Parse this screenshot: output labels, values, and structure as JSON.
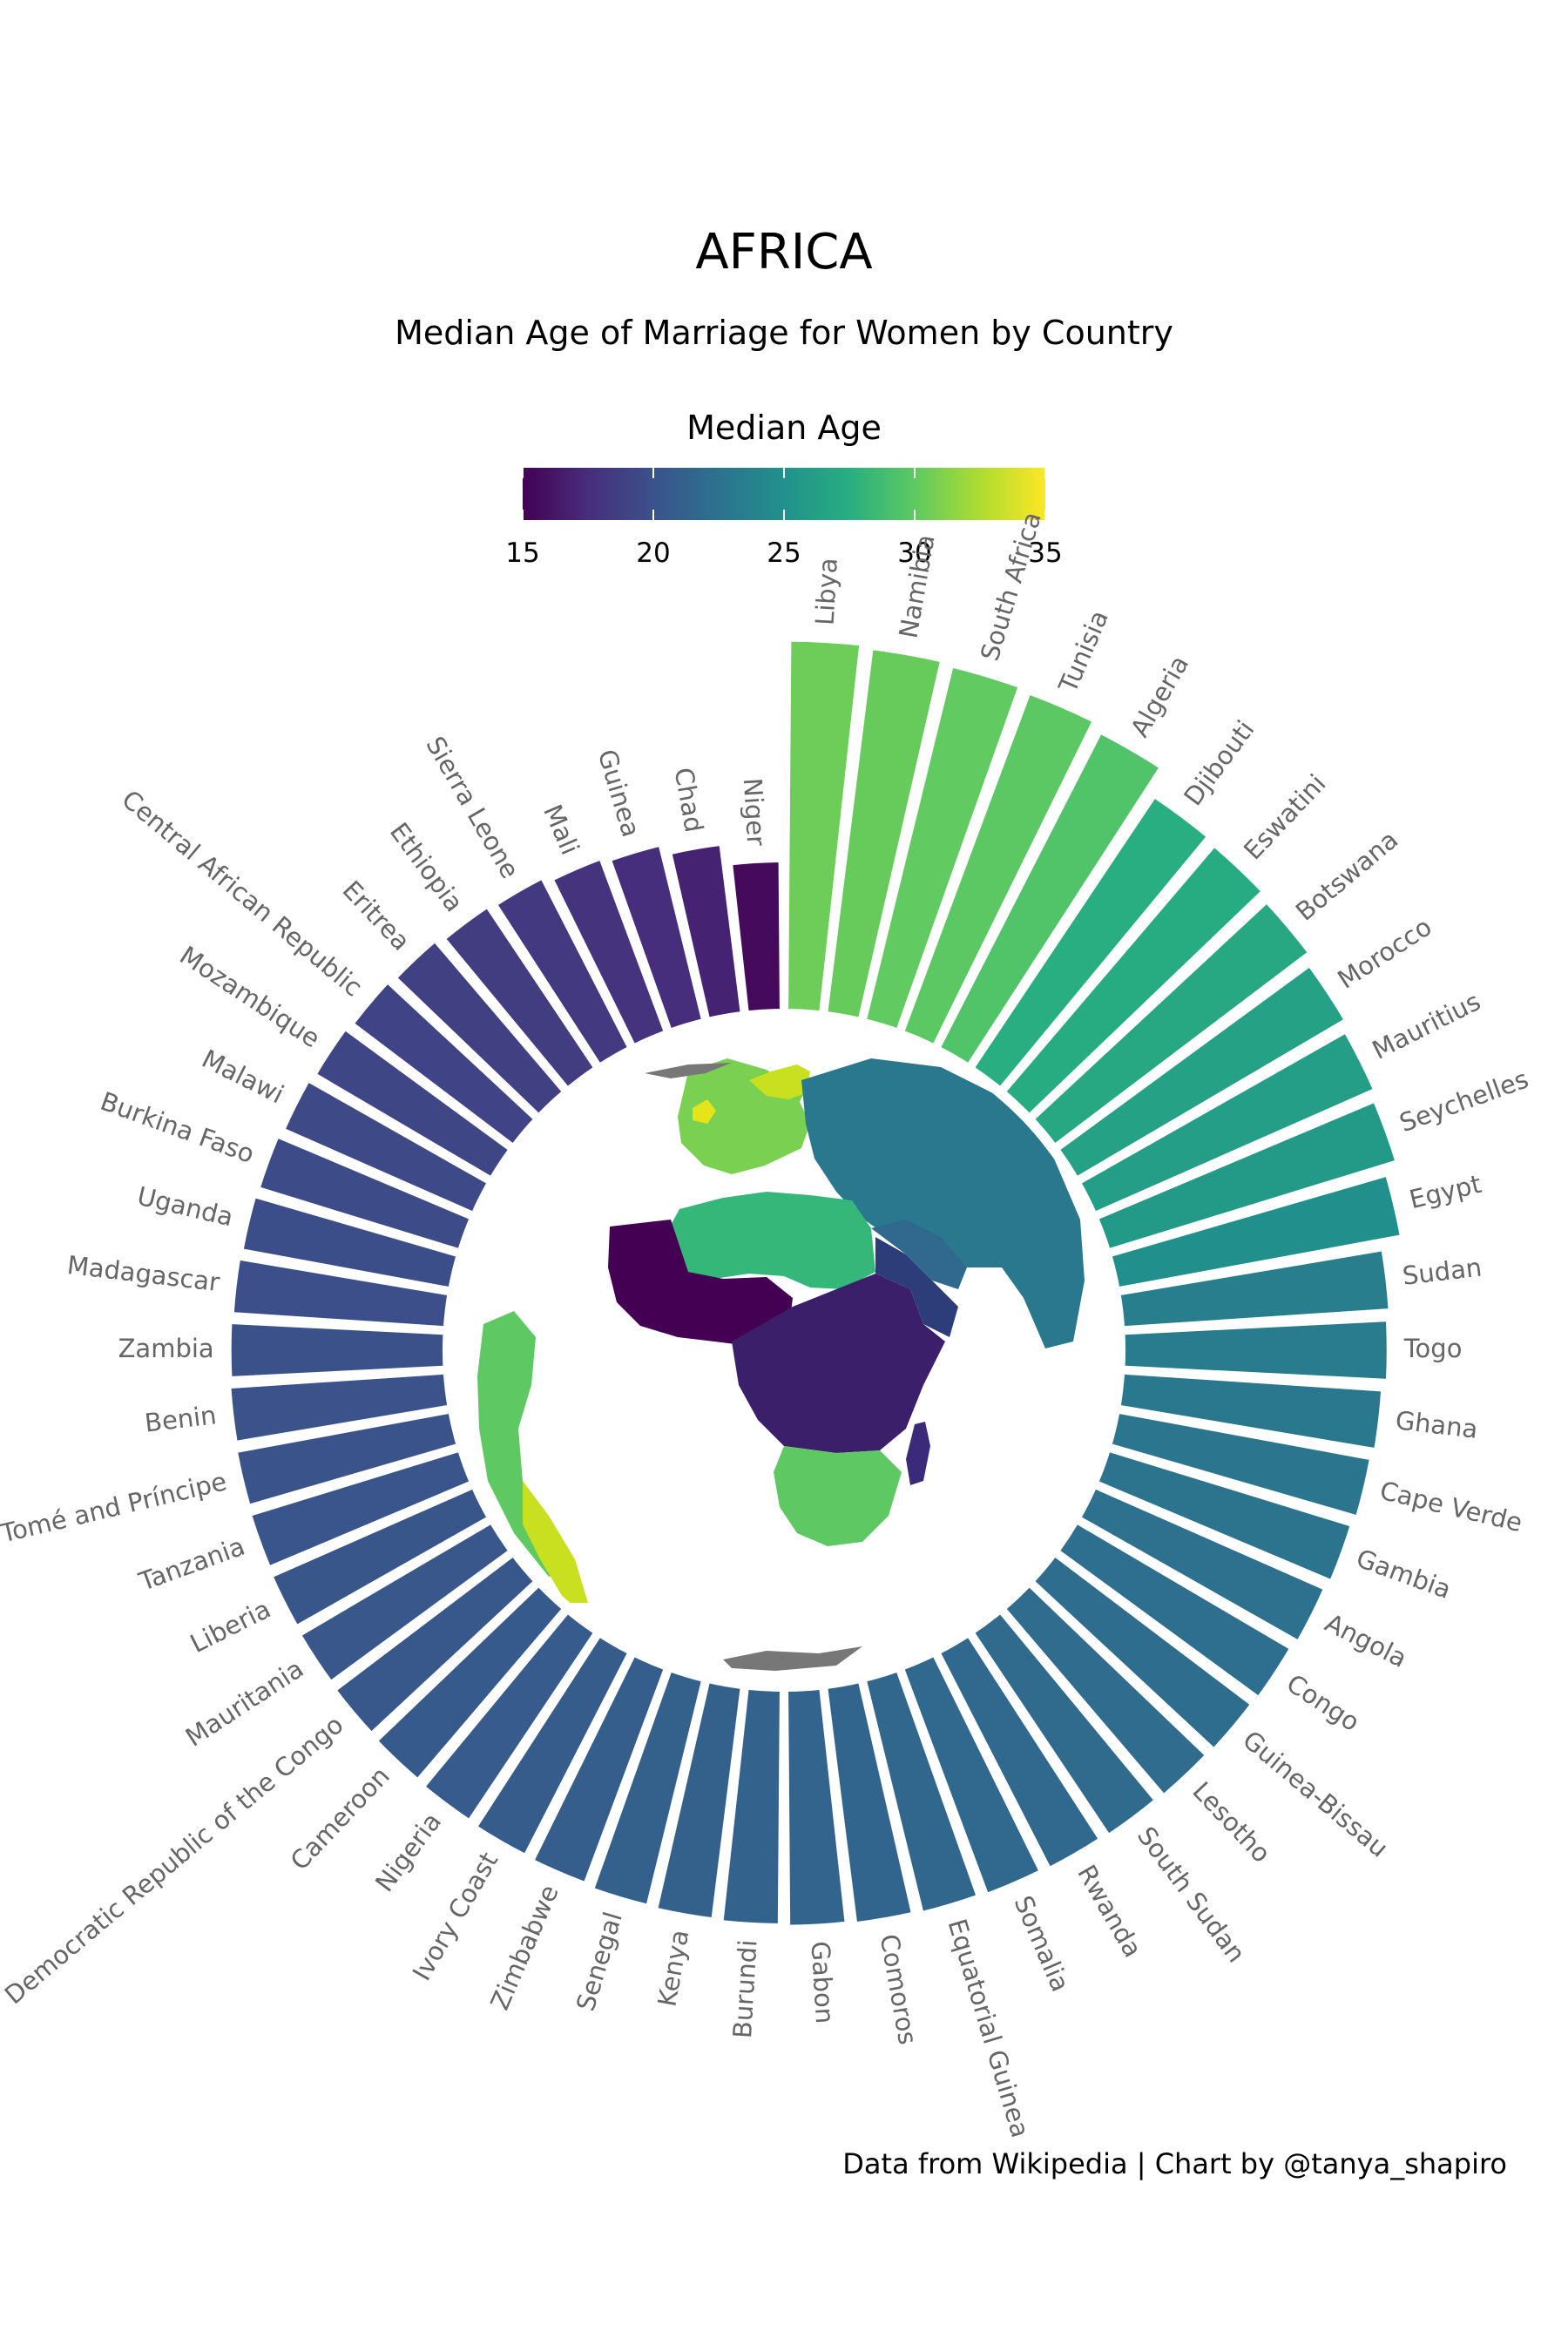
{
  "chart_data": {
    "type": "radial-bar",
    "title": "AFRICA",
    "subtitle": "Median Age of Marriage for Women by Country",
    "legend": {
      "title": "Median Age",
      "ticks": [
        "15",
        "20",
        "25",
        "30",
        "35"
      ],
      "range": [
        15,
        35
      ]
    },
    "caption": "Data from Wikipedia | Chart by @tanya_shapiro",
    "palette": "viridis",
    "countries": [
      {
        "name": "Libya",
        "value": 30.5
      },
      {
        "name": "Namibia",
        "value": 30.3
      },
      {
        "name": "South Africa",
        "value": 30.1
      },
      {
        "name": "Tunisia",
        "value": 29.9
      },
      {
        "name": "Algeria",
        "value": 29.4
      },
      {
        "name": "Djibouti",
        "value": 27.5
      },
      {
        "name": "Eswatini",
        "value": 27.3
      },
      {
        "name": "Botswana",
        "value": 27.0
      },
      {
        "name": "Morocco",
        "value": 26.5
      },
      {
        "name": "Mauritius",
        "value": 26.1
      },
      {
        "name": "Seychelles",
        "value": 25.8
      },
      {
        "name": "Egypt",
        "value": 24.9
      },
      {
        "name": "Sudan",
        "value": 23.5
      },
      {
        "name": "Togo",
        "value": 23.3
      },
      {
        "name": "Ghana",
        "value": 23.0
      },
      {
        "name": "Cape Verde",
        "value": 22.8
      },
      {
        "name": "Gambia",
        "value": 22.6
      },
      {
        "name": "Angola",
        "value": 22.4
      },
      {
        "name": "Congo",
        "value": 22.2
      },
      {
        "name": "Guinea-Bissau",
        "value": 22.1
      },
      {
        "name": "Lesotho",
        "value": 22.0
      },
      {
        "name": "South Sudan",
        "value": 21.9
      },
      {
        "name": "Rwanda",
        "value": 21.8
      },
      {
        "name": "Somalia",
        "value": 21.7
      },
      {
        "name": "Equatorial Guinea",
        "value": 21.6
      },
      {
        "name": "Comoros",
        "value": 21.5
      },
      {
        "name": "Gabon",
        "value": 21.4
      },
      {
        "name": "Burundi",
        "value": 21.3
      },
      {
        "name": "Kenya",
        "value": 21.2
      },
      {
        "name": "Senegal",
        "value": 21.1
      },
      {
        "name": "Zimbabwe",
        "value": 20.9
      },
      {
        "name": "Ivory Coast",
        "value": 20.8
      },
      {
        "name": "Nigeria",
        "value": 20.7
      },
      {
        "name": "Cameroon",
        "value": 20.6
      },
      {
        "name": "Democratic Republic of the Congo",
        "value": 20.5
      },
      {
        "name": "Mauritania",
        "value": 20.4
      },
      {
        "name": "Liberia",
        "value": 20.3
      },
      {
        "name": "Tanzania",
        "value": 20.2
      },
      {
        "name": "São Tomé and Príncipe",
        "value": 20.1
      },
      {
        "name": "Benin",
        "value": 20.0
      },
      {
        "name": "Zambia",
        "value": 19.9
      },
      {
        "name": "Madagascar",
        "value": 19.8
      },
      {
        "name": "Uganda",
        "value": 19.7
      },
      {
        "name": "Burkina Faso",
        "value": 19.6
      },
      {
        "name": "Malawi",
        "value": 19.4
      },
      {
        "name": "Mozambique",
        "value": 19.2
      },
      {
        "name": "Central African Republic",
        "value": 19.0
      },
      {
        "name": "Eritrea",
        "value": 18.8
      },
      {
        "name": "Ethiopia",
        "value": 18.5
      },
      {
        "name": "Sierra Leone",
        "value": 18.3
      },
      {
        "name": "Mali",
        "value": 17.9
      },
      {
        "name": "Guinea",
        "value": 17.6
      },
      {
        "name": "Chad",
        "value": 16.9
      },
      {
        "name": "Niger",
        "value": 15.5
      }
    ]
  }
}
